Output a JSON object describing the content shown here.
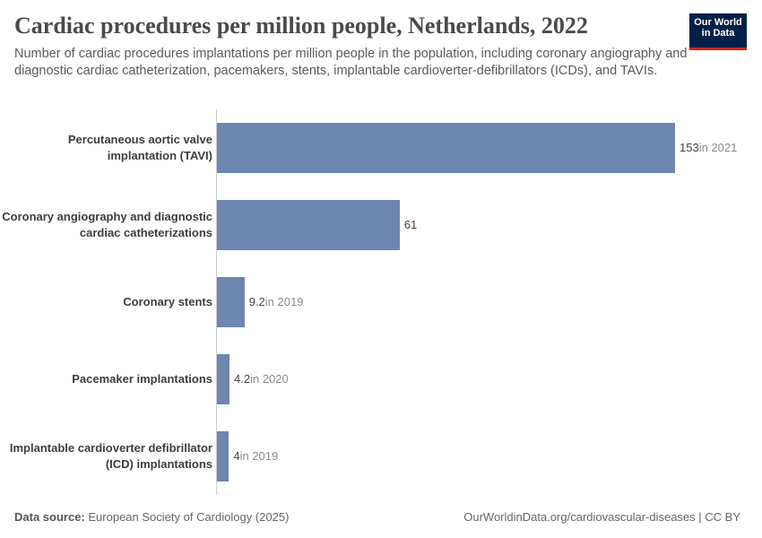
{
  "chart_data": {
    "type": "bar",
    "orientation": "horizontal",
    "title": "Cardiac procedures per million people, Netherlands, 2022",
    "subtitle": "Number of cardiac procedures implantations per million people in the population, including coronary angiography and diagnostic cardiac catheterization, pacemakers, stents, implantable cardioverter-defibrillators (ICDs), and TAVIs.",
    "categories": [
      "Percutaneous aortic valve implantation (TAVI)",
      "Coronary angiography and diagnostic cardiac catheterizations",
      "Coronary stents",
      "Pacemaker implantations",
      "Implantable cardioverter defibrillator (ICD) implantations"
    ],
    "values": [
      153,
      61,
      9.2,
      4.2,
      4
    ],
    "value_notes": [
      "in 2021",
      null,
      "in 2019",
      "in 2020",
      "in 2019"
    ],
    "color": "#6d87b0",
    "source_label": "Data source:",
    "source": "European Society of Cardiology (2025)",
    "credit": "OurWorldinData.org/cardiovascular-diseases | CC BY",
    "logo": "Our World in Data"
  }
}
